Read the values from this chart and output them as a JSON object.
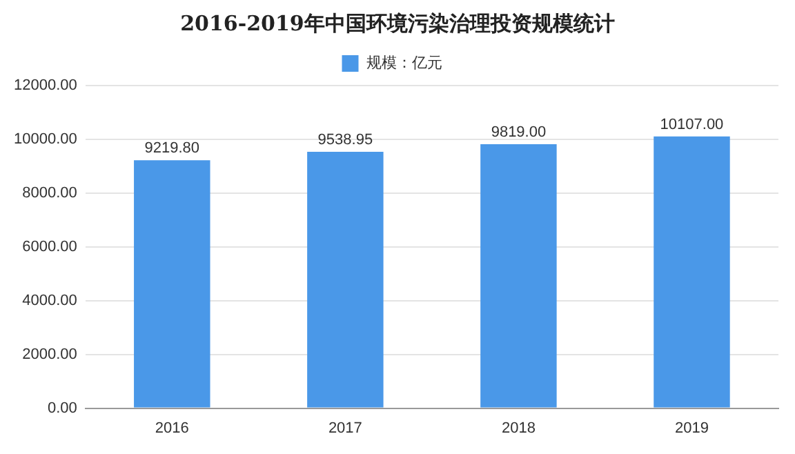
{
  "chart_data": {
    "type": "bar",
    "title": "2016-2019年中国环境污染治理投资规模统计",
    "categories": [
      "2016",
      "2017",
      "2018",
      "2019"
    ],
    "series": [
      {
        "name": "规模：亿元",
        "color": "#4a98e8",
        "values": [
          9219.8,
          9538.95,
          9819,
          10107
        ],
        "value_labels": [
          "9219.80",
          "9538.95",
          "9819.00",
          "10107.00"
        ]
      }
    ],
    "ylim": [
      0,
      12000
    ],
    "yticks": [
      {
        "value": 0,
        "label": "0.00"
      },
      {
        "value": 2000,
        "label": "2000.00"
      },
      {
        "value": 4000,
        "label": "4000.00"
      },
      {
        "value": 6000,
        "label": "6000.00"
      },
      {
        "value": 8000,
        "label": "8000.00"
      },
      {
        "value": 10000,
        "label": "10000.00"
      },
      {
        "value": 12000,
        "label": "12000.00"
      }
    ],
    "grid": "y",
    "legend": "top"
  }
}
